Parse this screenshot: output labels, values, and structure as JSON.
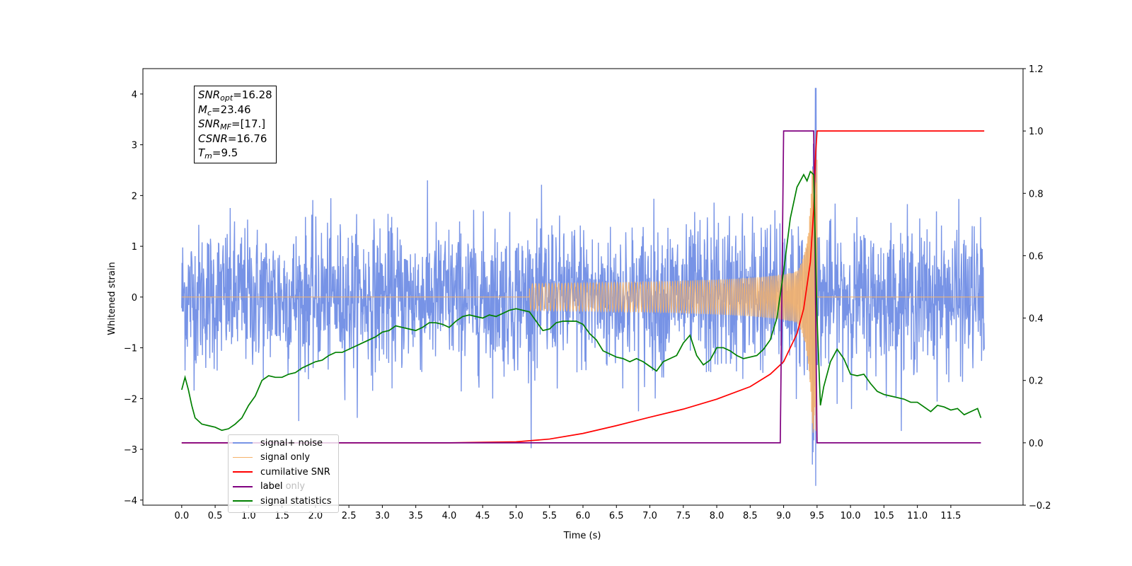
{
  "chart_data": {
    "type": "line",
    "xlabel": "Time (s)",
    "ylabel": "Whitened strain",
    "xlim": [
      -0.58,
      12.58
    ],
    "ylim": [
      -4.1,
      4.5
    ],
    "ylim_right": [
      -0.2,
      1.2
    ],
    "x_ticks": [
      "0.0",
      "0.5",
      "1.0",
      "1.5",
      "2.0",
      "2.5",
      "3.0",
      "3.5",
      "4.0",
      "4.5",
      "5.0",
      "5.5",
      "6.0",
      "6.5",
      "7.0",
      "7.5",
      "8.0",
      "8.5",
      "9.0",
      "9.5",
      "10.0",
      "10.5",
      "11.0",
      "11.5"
    ],
    "y_ticks_left": [
      "4",
      "3",
      "2",
      "1",
      "0",
      "−1",
      "−2",
      "−3",
      "−4"
    ],
    "y_ticks_right": [
      "1.2",
      "1.0",
      "0.8",
      "0.6",
      "0.4",
      "0.2",
      "0.0",
      "−0.2"
    ],
    "grid": false,
    "legend_placement": "lower-left",
    "annotation": {
      "snr_opt": {
        "name": "SNR",
        "sub": "opt",
        "value": "=16.28"
      },
      "mc": {
        "name": "M",
        "sub": "c",
        "value": "=23.46"
      },
      "snr_mf": {
        "name": "SNR",
        "sub": "MF",
        "value": "=[17.]"
      },
      "csnr": {
        "name": "CSNR",
        "value": "=16.76"
      },
      "tm": {
        "name": "T",
        "sub": "m",
        "value": "=9.5"
      }
    },
    "series": [
      {
        "name": "signal+ noise",
        "color": "#7793e6",
        "axis": "left",
        "description_values": {
          "noise_sigma": 0.9,
          "max": 4.12,
          "min": -3.72,
          "peak_time": 9.48
        }
      },
      {
        "name": "signal only",
        "color": "#f5b26a",
        "axis": "left",
        "chirp": {
          "start": 5.2,
          "end": 9.5,
          "peak_amplitude": 2.7
        }
      },
      {
        "name": "cumilative SNR",
        "color": "#ff0000",
        "axis": "right",
        "x": [
          0.0,
          4.0,
          5.0,
          5.5,
          6.0,
          6.5,
          7.0,
          7.5,
          8.0,
          8.5,
          8.8,
          9.0,
          9.2,
          9.3,
          9.4,
          9.45,
          9.48,
          9.5,
          12.0
        ],
        "y": [
          0.0,
          0.0,
          0.003,
          0.012,
          0.03,
          0.055,
          0.082,
          0.108,
          0.14,
          0.18,
          0.22,
          0.26,
          0.35,
          0.43,
          0.58,
          0.75,
          0.93,
          1.0,
          1.0
        ]
      },
      {
        "name": "label",
        "color": "#800080",
        "axis": "right",
        "x": [
          0.0,
          8.95,
          9.0,
          9.45,
          9.5,
          11.95
        ],
        "y": [
          0.0,
          0.0,
          1.0,
          1.0,
          0.0,
          0.0
        ]
      },
      {
        "name": "label only",
        "color": "#d0d0d0",
        "axis": "right",
        "hidden": true
      },
      {
        "name": "signal statistics",
        "color": "#008000",
        "axis": "right",
        "x": [
          0.0,
          0.05,
          0.1,
          0.15,
          0.2,
          0.3,
          0.4,
          0.5,
          0.6,
          0.7,
          0.8,
          0.9,
          1.0,
          1.1,
          1.2,
          1.3,
          1.4,
          1.5,
          1.6,
          1.7,
          1.8,
          1.9,
          2.0,
          2.1,
          2.2,
          2.3,
          2.4,
          2.5,
          2.6,
          2.7,
          2.8,
          2.9,
          3.0,
          3.1,
          3.2,
          3.3,
          3.4,
          3.5,
          3.6,
          3.7,
          3.8,
          3.9,
          4.0,
          4.1,
          4.2,
          4.3,
          4.4,
          4.5,
          4.6,
          4.7,
          4.8,
          4.9,
          5.0,
          5.1,
          5.2,
          5.3,
          5.4,
          5.5,
          5.6,
          5.7,
          5.8,
          5.9,
          6.0,
          6.1,
          6.2,
          6.3,
          6.4,
          6.5,
          6.6,
          6.7,
          6.8,
          6.9,
          7.0,
          7.1,
          7.2,
          7.3,
          7.4,
          7.5,
          7.6,
          7.7,
          7.8,
          7.9,
          8.0,
          8.1,
          8.2,
          8.3,
          8.4,
          8.5,
          8.6,
          8.7,
          8.8,
          8.9,
          9.0,
          9.1,
          9.2,
          9.3,
          9.35,
          9.4,
          9.45,
          9.5,
          9.55,
          9.6,
          9.7,
          9.8,
          9.9,
          10.0,
          10.1,
          10.2,
          10.3,
          10.4,
          10.5,
          10.6,
          10.7,
          10.8,
          10.9,
          11.0,
          11.1,
          11.2,
          11.3,
          11.4,
          11.5,
          11.6,
          11.7,
          11.8,
          11.9,
          11.95
        ],
        "y": [
          0.17,
          0.21,
          0.17,
          0.12,
          0.08,
          0.06,
          0.055,
          0.05,
          0.04,
          0.045,
          0.06,
          0.08,
          0.12,
          0.15,
          0.2,
          0.215,
          0.21,
          0.21,
          0.22,
          0.225,
          0.24,
          0.25,
          0.26,
          0.265,
          0.28,
          0.29,
          0.29,
          0.3,
          0.31,
          0.32,
          0.33,
          0.34,
          0.355,
          0.36,
          0.375,
          0.37,
          0.365,
          0.36,
          0.37,
          0.385,
          0.385,
          0.38,
          0.37,
          0.39,
          0.405,
          0.41,
          0.405,
          0.4,
          0.41,
          0.405,
          0.415,
          0.425,
          0.43,
          0.425,
          0.42,
          0.39,
          0.36,
          0.365,
          0.385,
          0.39,
          0.39,
          0.39,
          0.38,
          0.35,
          0.33,
          0.295,
          0.285,
          0.275,
          0.27,
          0.26,
          0.27,
          0.26,
          0.245,
          0.23,
          0.26,
          0.27,
          0.28,
          0.32,
          0.345,
          0.28,
          0.25,
          0.265,
          0.305,
          0.305,
          0.295,
          0.28,
          0.27,
          0.275,
          0.28,
          0.3,
          0.33,
          0.4,
          0.55,
          0.72,
          0.82,
          0.86,
          0.84,
          0.87,
          0.86,
          0.4,
          0.12,
          0.18,
          0.26,
          0.3,
          0.27,
          0.22,
          0.215,
          0.22,
          0.19,
          0.165,
          0.155,
          0.15,
          0.145,
          0.14,
          0.13,
          0.13,
          0.115,
          0.1,
          0.12,
          0.115,
          0.105,
          0.11,
          0.09,
          0.1,
          0.11,
          0.08
        ]
      }
    ]
  }
}
